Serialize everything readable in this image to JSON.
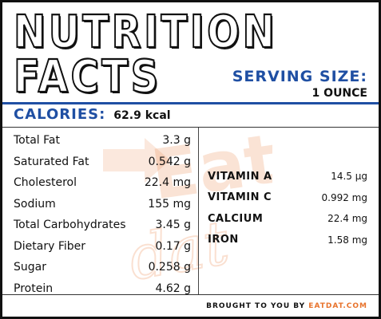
{
  "title": {
    "line1": "NUTRITION",
    "line2": "FACTS"
  },
  "serving": {
    "label": "SERVING SIZE:",
    "value": "1 OUNCE"
  },
  "calories": {
    "label": "CALORIES:",
    "value": "62.9 kcal"
  },
  "nutrients": [
    {
      "name": "Total Fat",
      "value": "3.3 g"
    },
    {
      "name": "Saturated Fat",
      "value": "0.542 g"
    },
    {
      "name": "Cholesterol",
      "value": "22.4 mg"
    },
    {
      "name": "Sodium",
      "value": "155 mg"
    },
    {
      "name": "Total Carbohydrates",
      "value": "3.45 g"
    },
    {
      "name": "Dietary Fiber",
      "value": "0.17 g"
    },
    {
      "name": "Sugar",
      "value": "0.258 g"
    },
    {
      "name": "Protein",
      "value": "4.62 g"
    }
  ],
  "vitamins": [
    {
      "name": "VITAMIN A",
      "value": "14.5 µg"
    },
    {
      "name": "VITAMIN C",
      "value": "0.992 mg"
    },
    {
      "name": "CALCIUM",
      "value": "22.4 mg"
    },
    {
      "name": "IRON",
      "value": "1.58 mg"
    }
  ],
  "footer": {
    "prefix": "BROUGHT TO YOU BY",
    "brand": "EATDAT.COM"
  },
  "watermark": {
    "text_top": "Eat",
    "text_bottom": "dat",
    "icon": "eatdat-logo-watermark"
  },
  "colors": {
    "accent_blue": "#1f4fa3",
    "brand_orange": "#e8732c",
    "border": "#111111"
  }
}
